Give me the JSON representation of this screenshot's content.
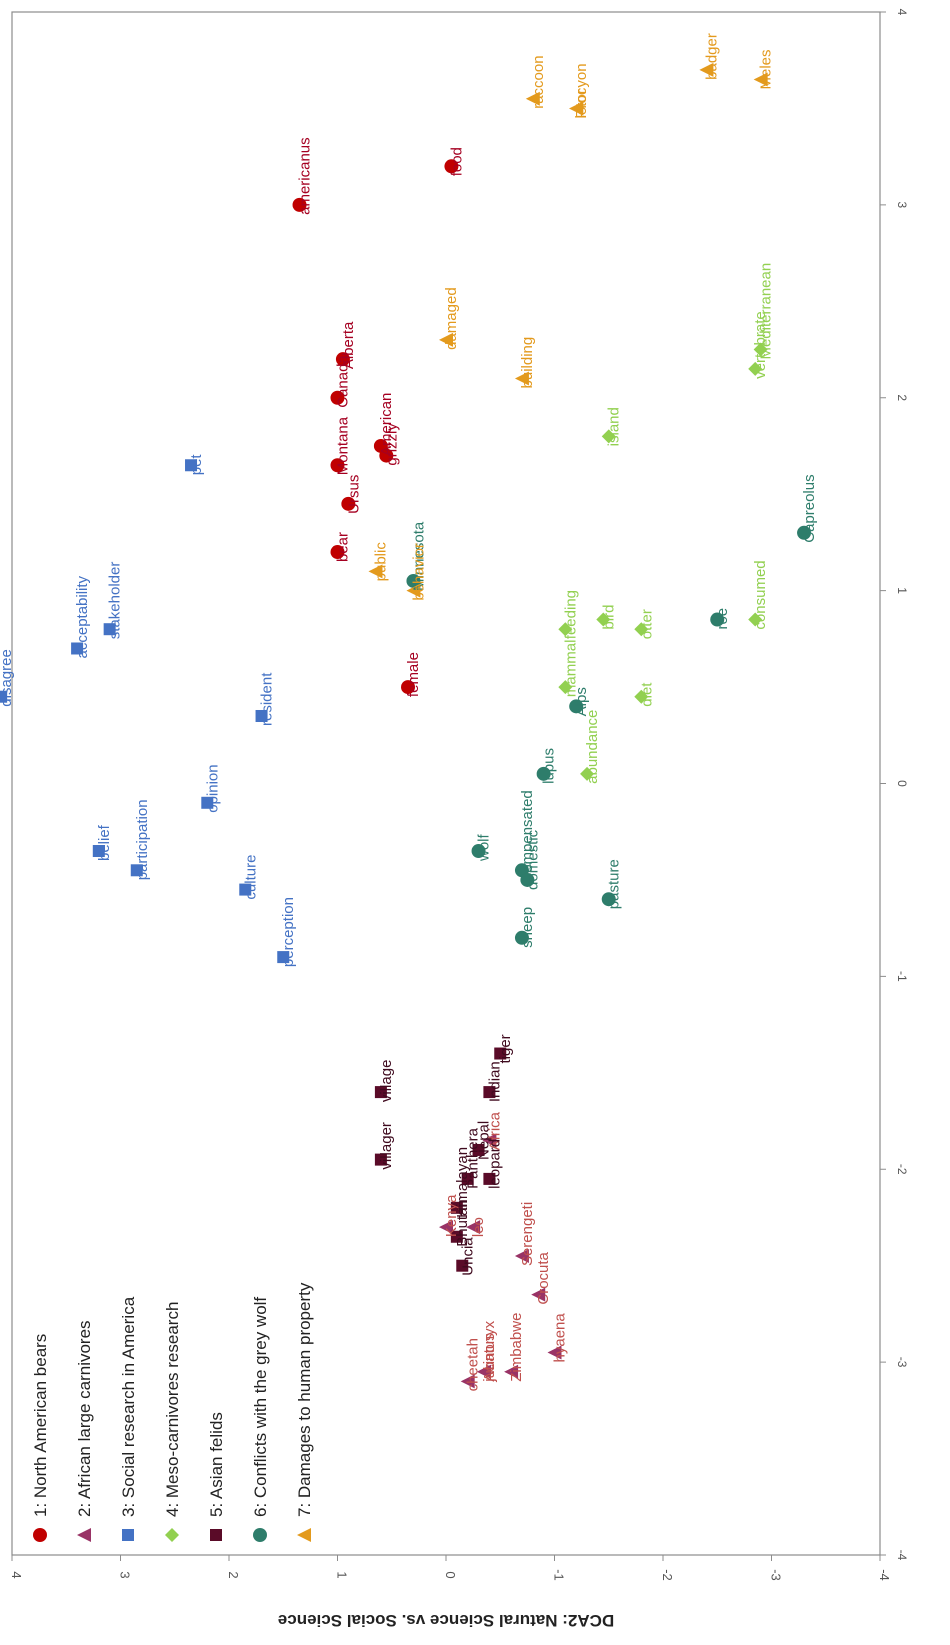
{
  "chart_data": {
    "type": "scatter",
    "orientation": "rotated-90-clockwise",
    "xlabel": "",
    "ylabel": "DCA2: Natural Science vs. Social Science",
    "xlim": [
      -4,
      4
    ],
    "ylim": [
      -4,
      4
    ],
    "xticks": [
      "-4",
      "-3",
      "-2",
      "-1",
      "0",
      "1",
      "2",
      "3",
      "4"
    ],
    "yticks": [
      "-4",
      "-3",
      "-2",
      "-1",
      "0",
      "1",
      "2",
      "3",
      "4"
    ],
    "legend_position": "top-left",
    "series": [
      {
        "name": "1: North American bears",
        "marker": "circle",
        "color": "#c00000",
        "label_color": "#a50021",
        "points": [
          {
            "label": "americanus",
            "x": 3.0,
            "y": 1.35
          },
          {
            "label": "food",
            "x": 3.2,
            "y": -0.05
          },
          {
            "label": "Alberta",
            "x": 2.2,
            "y": 0.95
          },
          {
            "label": "Canada",
            "x": 2.0,
            "y": 1.0
          },
          {
            "label": "American",
            "x": 1.75,
            "y": 0.6
          },
          {
            "label": "grizzly",
            "x": 1.7,
            "y": 0.55
          },
          {
            "label": "Montana",
            "x": 1.65,
            "y": 1.0
          },
          {
            "label": "Ursus",
            "x": 1.45,
            "y": 0.9
          },
          {
            "label": "bear",
            "x": 1.2,
            "y": 1.0
          },
          {
            "label": "female",
            "x": 0.5,
            "y": 0.35
          }
        ]
      },
      {
        "name": "2: African large carnivores",
        "marker": "triangle",
        "color": "#993366",
        "label_color": "#c0504d",
        "points": [
          {
            "label": "Africa",
            "x": -1.85,
            "y": -0.4
          },
          {
            "label": "leo",
            "x": -2.3,
            "y": -0.25
          },
          {
            "label": "Serengeti",
            "x": -2.45,
            "y": -0.7
          },
          {
            "label": "Kenya",
            "x": -2.3,
            "y": -0.0
          },
          {
            "label": "Crocuta",
            "x": -2.65,
            "y": -0.85
          },
          {
            "label": "hyaena",
            "x": -2.95,
            "y": -1.0
          },
          {
            "label": "cheetah",
            "x": -3.1,
            "y": -0.2
          },
          {
            "label": "Acinonyx",
            "x": -3.05,
            "y": -0.35
          },
          {
            "label": "jubatus",
            "x": -3.05,
            "y": -0.35
          },
          {
            "label": "Zimbabwe",
            "x": -3.05,
            "y": -0.6
          }
        ]
      },
      {
        "name": "3: Social research in America",
        "marker": "square",
        "color": "#4472c4",
        "label_color": "#4472c4",
        "points": [
          {
            "label": "disagree",
            "x": 0.45,
            "y": 4.1
          },
          {
            "label": "acceptability",
            "x": 0.7,
            "y": 3.4
          },
          {
            "label": "stakeholder",
            "x": 0.8,
            "y": 3.1
          },
          {
            "label": "pet",
            "x": 1.65,
            "y": 2.35
          },
          {
            "label": "resident",
            "x": 0.35,
            "y": 1.7
          },
          {
            "label": "opinion",
            "x": -0.1,
            "y": 2.2
          },
          {
            "label": "belief",
            "x": -0.35,
            "y": 3.2
          },
          {
            "label": "participation",
            "x": -0.45,
            "y": 2.85
          },
          {
            "label": "culture",
            "x": -0.55,
            "y": 1.85
          },
          {
            "label": "perception",
            "x": -0.9,
            "y": 1.5
          }
        ]
      },
      {
        "name": "4: Meso-carnivores research",
        "marker": "diamond",
        "color": "#92d050",
        "label_color": "#92d050",
        "points": [
          {
            "label": "vertebrate",
            "x": 2.15,
            "y": -2.85
          },
          {
            "label": "Mediterranean",
            "x": 2.25,
            "y": -2.9
          },
          {
            "label": "island",
            "x": 1.8,
            "y": -1.5
          },
          {
            "label": "feeding",
            "x": 0.8,
            "y": -1.1
          },
          {
            "label": "bird",
            "x": 0.85,
            "y": -1.45
          },
          {
            "label": "otter",
            "x": 0.8,
            "y": -1.8
          },
          {
            "label": "mammal",
            "x": 0.5,
            "y": -1.1
          },
          {
            "label": "diet",
            "x": 0.45,
            "y": -1.8
          },
          {
            "label": "abundance",
            "x": 0.05,
            "y": -1.3
          },
          {
            "label": "consumed",
            "x": 0.85,
            "y": -2.85
          }
        ]
      },
      {
        "name": "5: Asian felids",
        "marker": "square",
        "color": "#5a0b28",
        "label_color": "#3f0a1e",
        "points": [
          {
            "label": "village",
            "x": -1.6,
            "y": 0.6
          },
          {
            "label": "villager",
            "x": -1.95,
            "y": 0.6
          },
          {
            "label": "tiger",
            "x": -1.4,
            "y": -0.5
          },
          {
            "label": "Indian",
            "x": -1.6,
            "y": -0.4
          },
          {
            "label": "Nepal",
            "x": -1.9,
            "y": -0.3
          },
          {
            "label": "Panthera",
            "x": -2.05,
            "y": -0.2
          },
          {
            "label": "leopard",
            "x": -2.05,
            "y": -0.4
          },
          {
            "label": "Himalayan",
            "x": -2.2,
            "y": -0.1
          },
          {
            "label": "Bhutan",
            "x": -2.35,
            "y": -0.1
          },
          {
            "label": "Uncia",
            "x": -2.5,
            "y": -0.15
          }
        ]
      },
      {
        "name": "6: Conflicts with the grey wolf",
        "marker": "circle",
        "color": "#2e7d6b",
        "label_color": "#2e7d6b",
        "points": [
          {
            "label": "Minnesota",
            "x": 1.05,
            "y": 0.3
          },
          {
            "label": "Capreolus",
            "x": 1.3,
            "y": -3.3
          },
          {
            "label": "roe",
            "x": 0.85,
            "y": -2.5
          },
          {
            "label": "Alps",
            "x": 0.4,
            "y": -1.2
          },
          {
            "label": "lupus",
            "x": 0.05,
            "y": -0.9
          },
          {
            "label": "wolf",
            "x": -0.35,
            "y": -0.3
          },
          {
            "label": "compensated",
            "x": -0.45,
            "y": -0.7
          },
          {
            "label": "domestic",
            "x": -0.5,
            "y": -0.75
          },
          {
            "label": "sheep",
            "x": -0.8,
            "y": -0.7
          },
          {
            "label": "pasture",
            "x": -0.6,
            "y": -1.5
          }
        ]
      },
      {
        "name": "7: Damages to human property",
        "marker": "triangle",
        "color": "#e39a1d",
        "label_color": "#e39a1d",
        "points": [
          {
            "label": "badger",
            "x": 3.7,
            "y": -2.4
          },
          {
            "label": "Meles",
            "x": 3.65,
            "y": -2.9
          },
          {
            "label": "lotor",
            "x": 3.5,
            "y": -1.2
          },
          {
            "label": "raccoon",
            "x": 3.55,
            "y": -0.8
          },
          {
            "label": "Procyon",
            "x": 3.5,
            "y": -1.2
          },
          {
            "label": "damaged",
            "x": 2.3,
            "y": 0.0
          },
          {
            "label": "building",
            "x": 2.1,
            "y": -0.7
          },
          {
            "label": "public",
            "x": 1.1,
            "y": 0.65
          },
          {
            "label": "behavior",
            "x": 1.0,
            "y": 0.3
          }
        ]
      }
    ]
  }
}
